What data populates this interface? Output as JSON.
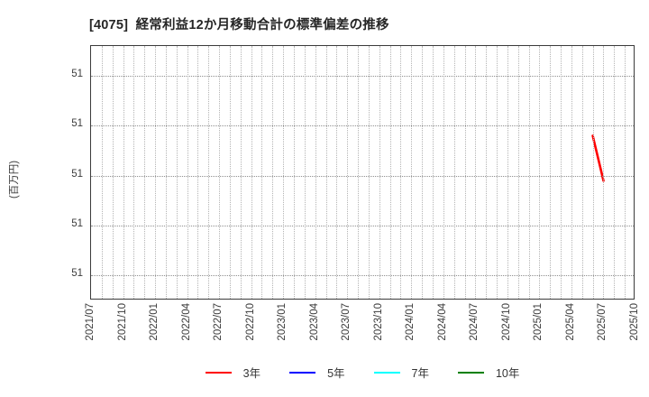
{
  "window": {
    "background": "#ffffff",
    "title_color": "#262626",
    "tick_color": "#3d3d3d",
    "grid_color": "#a8a8a8",
    "border_color": "#3b3b3b"
  },
  "chart_data": {
    "type": "line",
    "title": "[4075]  経常利益12か月移動合計の標準偏差の推移",
    "xlabel": "",
    "ylabel": "(百万円)",
    "x_tick_labels": [
      "2021/07",
      "2021/10",
      "2022/01",
      "2022/04",
      "2022/07",
      "2022/10",
      "2023/01",
      "2023/04",
      "2023/07",
      "2023/10",
      "2024/01",
      "2024/04",
      "2024/07",
      "2024/10",
      "2025/01",
      "2025/04",
      "2025/07",
      "2025/10"
    ],
    "y_tick_labels": [
      "51",
      "51",
      "51",
      "51",
      "51"
    ],
    "y_tick_values": [
      51.2,
      51.1,
      51.0,
      50.9,
      50.8
    ],
    "ylim": [
      50.75,
      51.26
    ],
    "x_range": [
      "2021/07",
      "2025/10"
    ],
    "grid": "dotted; vertical gridline every month, horizontal at each y tick",
    "legend_position": "bottom-center",
    "legend": [
      {
        "label": "3年",
        "color": "#ff0000"
      },
      {
        "label": "5年",
        "color": "#0000ff"
      },
      {
        "label": "7年",
        "color": "#00ffff"
      },
      {
        "label": "10年",
        "color": "#008000"
      }
    ],
    "series": [
      {
        "name": "3年",
        "color": "#ff0000",
        "points": [
          {
            "x": "2025/06",
            "y": 51.08
          },
          {
            "x": "2025/07",
            "y": 50.99
          }
        ]
      },
      {
        "name": "5年",
        "color": "#0000ff",
        "points": []
      },
      {
        "name": "7年",
        "color": "#00ffff",
        "points": []
      },
      {
        "name": "10年",
        "color": "#008000",
        "points": []
      }
    ]
  }
}
